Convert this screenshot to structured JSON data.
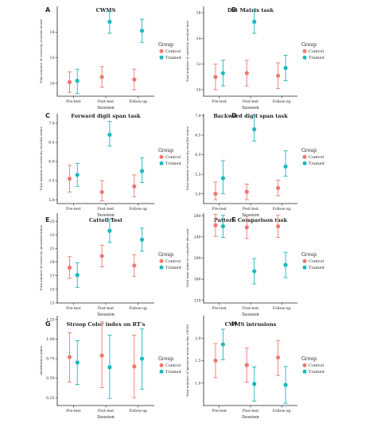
{
  "colors": {
    "control": "#F0786E",
    "trained": "#1CB8BF",
    "axis": "#222222",
    "background": "#ffffff"
  },
  "chart_data": [
    {
      "letter": "A",
      "title": "CWMS",
      "type": "scatter",
      "categories": [
        "Pre-test",
        "Post-test",
        "Follow-up"
      ],
      "xlabel": "Session",
      "ylabel": "Total number of correctly recalled words",
      "ylim": [
        9,
        16
      ],
      "yticks": [
        10,
        12,
        14
      ],
      "legend": {
        "title": "Group",
        "entries": [
          "Control",
          "Trained"
        ],
        "placement": "right"
      },
      "series": [
        {
          "name": "Control",
          "values": [
            10.1,
            10.5,
            10.3
          ],
          "lower": [
            9.3,
            9.7,
            9.5
          ],
          "upper": [
            10.9,
            11.3,
            11.1
          ]
        },
        {
          "name": "Trained",
          "values": [
            10.2,
            14.8,
            14.1
          ],
          "lower": [
            9.2,
            13.9,
            13.2
          ],
          "upper": [
            11.1,
            15.6,
            15.0
          ]
        }
      ]
    },
    {
      "letter": "B",
      "title": "Dot Matrix task",
      "type": "scatter",
      "categories": [
        "Pre-test",
        "Post-test",
        "Follow-up"
      ],
      "xlabel": "Session",
      "ylabel": "Total number of correctly recalled dots",
      "ylim": [
        9.5,
        16.5
      ],
      "yticks": [
        10,
        12,
        14,
        16
      ],
      "legend": {
        "title": "Group",
        "entries": [
          "Control",
          "Trained"
        ],
        "placement": "right"
      },
      "series": [
        {
          "name": "Control",
          "values": [
            11.0,
            11.3,
            11.1
          ],
          "lower": [
            10.0,
            10.3,
            10.1
          ],
          "upper": [
            12.0,
            12.3,
            12.1
          ]
        },
        {
          "name": "Trained",
          "values": [
            11.3,
            15.3,
            11.7
          ],
          "lower": [
            10.3,
            14.4,
            10.7
          ],
          "upper": [
            12.3,
            16.2,
            12.7
          ]
        }
      ]
    },
    {
      "letter": "C",
      "title": "Forward digit span task",
      "type": "scatter",
      "categories": [
        "Pre-test",
        "Post-test",
        "Follow-up"
      ],
      "xlabel": "Session",
      "ylabel": "Total number of correctly recalled series",
      "ylim": [
        4.9,
        7.25
      ],
      "yticks": [
        5.0,
        5.5,
        6.0,
        6.5,
        7.0
      ],
      "legend": {
        "title": "Group",
        "entries": [
          "Control",
          "Trained"
        ],
        "placement": "right"
      },
      "series": [
        {
          "name": "Control",
          "values": [
            5.55,
            5.2,
            5.35
          ],
          "lower": [
            5.2,
            4.97,
            5.08
          ],
          "upper": [
            5.9,
            5.5,
            5.65
          ]
        },
        {
          "name": "Trained",
          "values": [
            5.65,
            6.7,
            5.75
          ],
          "lower": [
            5.35,
            6.4,
            5.45
          ],
          "upper": [
            5.95,
            7.05,
            6.1
          ]
        }
      ]
    },
    {
      "letter": "D",
      "title": "Backward digit span task",
      "type": "scatter",
      "categories": [
        "Pre-test",
        "Post-test",
        "Follow-up"
      ],
      "xlabel": "Session",
      "ylabel": "Total number of correctly recalled series",
      "ylim": [
        4.75,
        7.05
      ],
      "yticks": [
        5.0,
        5.5,
        6.0,
        6.5,
        7.0
      ],
      "legend": {
        "title": "Group",
        "entries": [
          "Control",
          "Trained"
        ],
        "placement": "right"
      },
      "series": [
        {
          "name": "Control",
          "values": [
            5.0,
            5.05,
            5.15
          ],
          "lower": [
            4.85,
            4.85,
            4.95
          ],
          "upper": [
            5.3,
            5.25,
            5.35
          ]
        },
        {
          "name": "Trained",
          "values": [
            5.4,
            6.65,
            5.7
          ],
          "lower": [
            5.0,
            6.35,
            5.45
          ],
          "upper": [
            5.85,
            7.0,
            6.1
          ]
        }
      ]
    },
    {
      "letter": "E",
      "title": "Cattell Test",
      "type": "scatter",
      "categories": [
        "Pre-test",
        "Post-test",
        "Follow-up"
      ],
      "xlabel": "Session",
      "ylabel": "Total number of correctly answered items",
      "ylim": [
        13,
        26.2
      ],
      "yticks": [
        13,
        15,
        17,
        19,
        21,
        23,
        25
      ],
      "legend": {
        "title": "Group",
        "entries": [
          "Control",
          "Trained"
        ],
        "placement": "right"
      },
      "series": [
        {
          "name": "Control",
          "values": [
            18.2,
            19.9,
            18.5
          ],
          "lower": [
            16.6,
            18.3,
            16.9
          ],
          "upper": [
            19.8,
            21.5,
            20.1
          ]
        },
        {
          "name": "Trained",
          "values": [
            17.1,
            23.6,
            22.3
          ],
          "lower": [
            15.3,
            21.9,
            20.6
          ],
          "upper": [
            18.9,
            25.3,
            24.0
          ]
        }
      ]
    },
    {
      "letter": "F",
      "title": "Pattern Comparison task",
      "type": "scatter",
      "categories": [
        "Pre-test",
        "Post-test",
        "Follow-up"
      ],
      "xlabel": "Session",
      "ylabel": "Total time taken to complete the task",
      "ylim": [
        115,
        285
      ],
      "yticks": [
        120,
        160,
        200,
        240,
        280
      ],
      "legend": {
        "title": "Group",
        "entries": [
          "Control",
          "Trained"
        ],
        "placement": "right"
      },
      "series": [
        {
          "name": "Control",
          "values": [
            262,
            258,
            260
          ],
          "lower": [
            241,
            237,
            239
          ],
          "upper": [
            283,
            279,
            281
          ]
        },
        {
          "name": "Trained",
          "values": [
            260,
            175,
            187
          ],
          "lower": [
            239,
            151,
            163
          ],
          "upper": [
            281,
            199,
            211
          ]
        }
      ]
    },
    {
      "letter": "G",
      "title": "Stroop Color index on RT's",
      "type": "scatter",
      "categories": [
        "Pre-test",
        "Post-test",
        "Follow-up"
      ],
      "xlabel": "Session",
      "ylabel": "Interference index",
      "ylim": [
        0.15,
        1.3
      ],
      "yticks": [
        0.25,
        0.5,
        0.75,
        1.0,
        1.25
      ],
      "legend": {
        "title": "Group",
        "entries": [
          "Control",
          "Trained"
        ],
        "placement": "right"
      },
      "series": [
        {
          "name": "Control",
          "values": [
            0.77,
            0.79,
            0.65
          ],
          "lower": [
            0.45,
            0.38,
            0.25
          ],
          "upper": [
            1.08,
            1.22,
            1.05
          ]
        },
        {
          "name": "Trained",
          "values": [
            0.7,
            0.64,
            0.75
          ],
          "lower": [
            0.42,
            0.24,
            0.36
          ],
          "upper": [
            0.98,
            1.05,
            1.13
          ]
        }
      ]
    },
    {
      "letter": "H",
      "title": "CWMS intrusions",
      "type": "scatter",
      "categories": [
        "Pre-test",
        "Post-test",
        "Follow-up"
      ],
      "xlabel": "Session",
      "ylabel": "Total number of intrusion errors in the CWMS",
      "ylim": [
        0.5,
        2.5
      ],
      "yticks": [
        1.0,
        1.5,
        2.0
      ],
      "legend": {
        "title": "Group",
        "entries": [
          "Control",
          "Trained"
        ],
        "placement": "right"
      },
      "series": [
        {
          "name": "Control",
          "values": [
            1.5,
            1.4,
            1.57
          ],
          "lower": [
            1.12,
            1.02,
            1.17
          ],
          "upper": [
            1.88,
            1.78,
            1.95
          ]
        },
        {
          "name": "Trained",
          "values": [
            1.86,
            0.98,
            0.96
          ],
          "lower": [
            1.52,
            0.6,
            0.55
          ],
          "upper": [
            2.2,
            1.36,
            1.37
          ]
        }
      ]
    }
  ]
}
